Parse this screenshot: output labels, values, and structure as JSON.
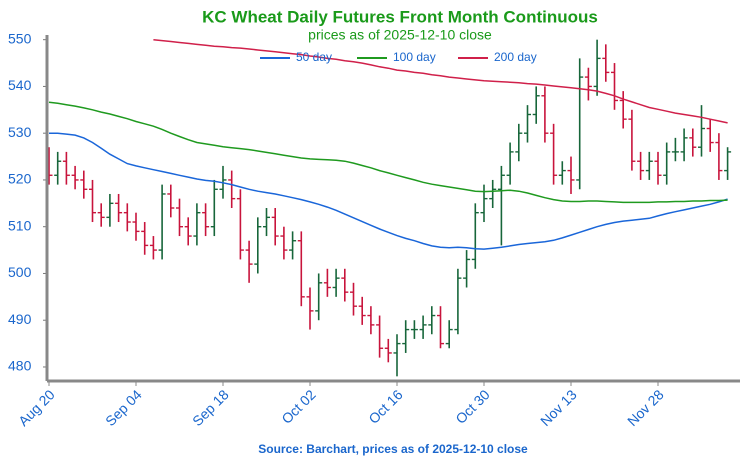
{
  "chart_data": {
    "type": "ohlc",
    "title": "KC Wheat Daily Futures Front Month Continuous",
    "subtitle": "prices as of 2025-12-10 close",
    "source": "Source: Barchart, prices as of 2025-12-10 close",
    "categories": [
      "Aug 20",
      null,
      null,
      null,
      null,
      null,
      null,
      null,
      null,
      null,
      "Sep 04",
      null,
      null,
      null,
      null,
      null,
      null,
      null,
      null,
      null,
      "Sep 18",
      null,
      null,
      null,
      null,
      null,
      null,
      null,
      null,
      null,
      "Oct 02",
      null,
      null,
      null,
      null,
      null,
      null,
      null,
      null,
      null,
      "Oct 16",
      null,
      null,
      null,
      null,
      null,
      null,
      null,
      null,
      null,
      "Oct 30",
      null,
      null,
      null,
      null,
      null,
      null,
      null,
      null,
      null,
      "Nov 13",
      null,
      null,
      null,
      null,
      null,
      null,
      null,
      null,
      null,
      "Nov 28",
      null,
      null,
      null,
      null,
      null,
      null,
      null,
      null
    ],
    "open": [
      525,
      521,
      524,
      521,
      520,
      518,
      513,
      512,
      515,
      513,
      511,
      509,
      506,
      505,
      517,
      514,
      510,
      508,
      513,
      510,
      518,
      520,
      516,
      505,
      502,
      510,
      512,
      508,
      505,
      507,
      495,
      492,
      498,
      497,
      499,
      496,
      493,
      491,
      489,
      484,
      483,
      485,
      488,
      488,
      489,
      491,
      485,
      488,
      499,
      503,
      513,
      516,
      518,
      521,
      526,
      530,
      534,
      538,
      530,
      521,
      522,
      520,
      542,
      540,
      546,
      543,
      537,
      533,
      524,
      522,
      524,
      521,
      526,
      526,
      529,
      527,
      531,
      528,
      522
    ],
    "high": [
      527,
      526,
      526,
      523,
      522,
      520,
      515,
      517,
      517,
      515,
      513,
      511,
      508,
      519,
      519,
      516,
      512,
      515,
      515,
      520,
      523,
      522,
      518,
      507,
      512,
      514,
      514,
      510,
      509,
      509,
      497,
      500,
      501,
      501,
      501,
      498,
      495,
      493,
      491,
      486,
      487,
      490,
      490,
      491,
      493,
      493,
      490,
      501,
      505,
      515,
      519,
      520,
      523,
      528,
      532,
      536,
      540,
      540,
      532,
      524,
      525,
      546,
      544,
      550,
      549,
      545,
      539,
      535,
      526,
      526,
      526,
      528,
      529,
      531,
      531,
      536,
      533,
      530,
      527
    ],
    "low": [
      519,
      519,
      519,
      518,
      516,
      511,
      510,
      510,
      511,
      509,
      507,
      504,
      503,
      503,
      512,
      508,
      506,
      506,
      508,
      508,
      516,
      514,
      503,
      498,
      500,
      508,
      506,
      503,
      503,
      493,
      488,
      490,
      495,
      495,
      494,
      491,
      489,
      487,
      482,
      481,
      478,
      483,
      486,
      486,
      487,
      484,
      484,
      487,
      497,
      501,
      511,
      514,
      506,
      519,
      524,
      528,
      532,
      528,
      519,
      519,
      517,
      518,
      537,
      538,
      541,
      535,
      531,
      522,
      520,
      520,
      519,
      519,
      524,
      524,
      525,
      525,
      526,
      520,
      520
    ],
    "close": [
      521,
      524,
      521,
      520,
      518,
      513,
      512,
      515,
      513,
      511,
      509,
      506,
      505,
      517,
      514,
      510,
      508,
      513,
      510,
      518,
      520,
      516,
      505,
      502,
      510,
      512,
      508,
      505,
      507,
      495,
      492,
      498,
      497,
      499,
      496,
      493,
      491,
      489,
      484,
      483,
      485,
      488,
      488,
      489,
      491,
      485,
      488,
      499,
      503,
      513,
      516,
      518,
      521,
      526,
      530,
      534,
      538,
      530,
      521,
      522,
      520,
      542,
      540,
      546,
      543,
      537,
      533,
      524,
      522,
      524,
      521,
      526,
      526,
      529,
      527,
      531,
      528,
      522,
      526
    ],
    "up_color": "#17663a",
    "down_color": "#c8143c",
    "series": [
      {
        "name": "50 day",
        "color": "#1a66d9",
        "values": [
          530,
          530,
          529.8,
          529.6,
          529,
          528,
          526.8,
          525.5,
          524.5,
          523.5,
          523,
          522.6,
          522.2,
          521.8,
          521.4,
          521,
          520.6,
          520.2,
          519.9,
          519.7,
          519.4,
          519,
          518.5,
          518,
          517.6,
          517.3,
          517,
          516.6,
          516.2,
          515.8,
          515.3,
          514.8,
          514.2,
          513.5,
          512.7,
          511.9,
          511.1,
          510.3,
          509.5,
          508.8,
          508.1,
          507.5,
          507,
          506.4,
          505.9,
          505.6,
          505.5,
          505.6,
          505.5,
          505.3,
          505.2,
          505.4,
          505.6,
          505.9,
          506.2,
          506.4,
          506.6,
          506.8,
          507.1,
          507.6,
          508.2,
          508.8,
          509.4,
          510,
          510.5,
          510.9,
          511.2,
          511.4,
          511.6,
          511.8,
          512.3,
          512.8,
          513.2,
          513.6,
          514,
          514.4,
          514.8,
          515.3,
          515.9
        ]
      },
      {
        "name": "100 day",
        "color": "#1f9a1f",
        "values": [
          536.6,
          536.4,
          536.1,
          535.8,
          535.4,
          535,
          534.5,
          534.1,
          533.6,
          533.1,
          532.5,
          532,
          531.5,
          530.8,
          530,
          529.3,
          528.6,
          528,
          527.7,
          527.4,
          527.1,
          526.9,
          526.7,
          526.5,
          526.2,
          525.9,
          525.6,
          525.3,
          525,
          524.7,
          524.5,
          524.4,
          524.3,
          524.2,
          524,
          523.6,
          523.1,
          522.6,
          522,
          521.5,
          521,
          520.5,
          520,
          519.5,
          519.1,
          518.8,
          518.5,
          518.2,
          517.9,
          517.6,
          517.5,
          517.6,
          517.7,
          517.8,
          517.6,
          517.2,
          516.7,
          516.2,
          515.8,
          515.5,
          515.4,
          515.4,
          515.5,
          515.5,
          515.4,
          515.3,
          515.2,
          515.2,
          515.2,
          515.2,
          515.3,
          515.3,
          515.4,
          515.4,
          515.5,
          515.5,
          515.6,
          515.6,
          515.7
        ]
      },
      {
        "name": "200 day",
        "color": "#d0204a",
        "values": [
          null,
          null,
          null,
          null,
          null,
          null,
          null,
          null,
          null,
          null,
          null,
          null,
          550,
          549.8,
          549.6,
          549.4,
          549.2,
          549,
          548.8,
          548.6,
          548.5,
          548.3,
          548.2,
          548,
          547.8,
          547.6,
          547.4,
          547.2,
          547,
          546.8,
          546.5,
          546.3,
          546,
          545.8,
          545.5,
          545.3,
          545,
          544.6,
          544.2,
          543.9,
          543.5,
          543.3,
          543,
          542.8,
          542.5,
          542.3,
          542,
          541.8,
          541.6,
          541.4,
          541.2,
          541.1,
          541,
          540.9,
          540.8,
          540.6,
          540.5,
          540.3,
          540.1,
          539.9,
          539.7,
          539.5,
          539.3,
          539,
          538.5,
          538,
          537.3,
          536.7,
          536.1,
          535.5,
          535.1,
          534.7,
          534.3,
          534,
          533.7,
          533.4,
          533,
          532.6,
          532.2
        ]
      }
    ],
    "ylim": [
      477,
      551
    ],
    "yticks": [
      480,
      490,
      500,
      510,
      520,
      530,
      540,
      550
    ],
    "legend": "top"
  }
}
